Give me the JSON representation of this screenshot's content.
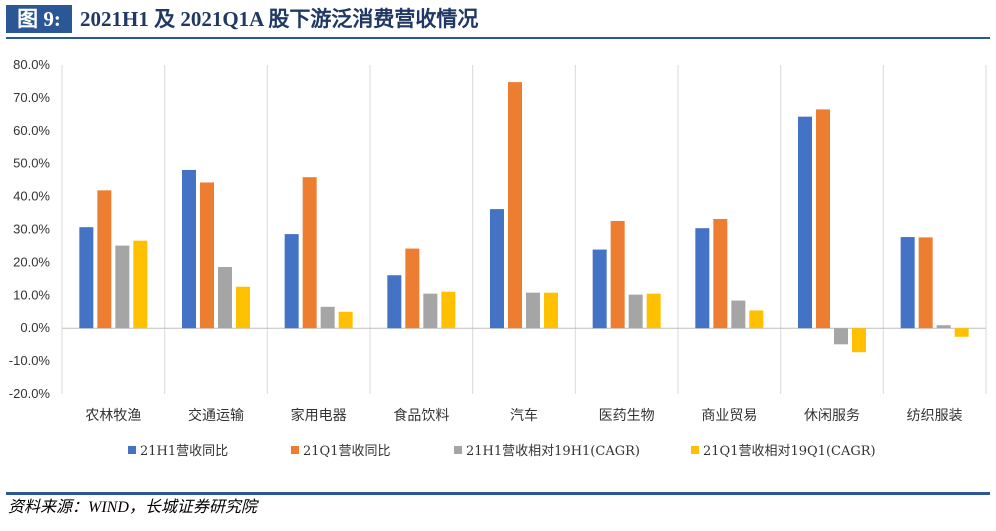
{
  "header": {
    "figure_label": "图 9:",
    "title": "2021H1 及 2021Q1A 股下游泛消费营收情况"
  },
  "footer": {
    "source": "资料来源：WIND，长城证券研究院"
  },
  "colors": {
    "brand": "#2b5797",
    "title_text": "#1f3864"
  },
  "chart_data": {
    "type": "bar",
    "categories": [
      "农林牧渔",
      "交通运输",
      "家用电器",
      "食品饮料",
      "汽车",
      "医药生物",
      "商业贸易",
      "休闲服务",
      "纺织服装"
    ],
    "series": [
      {
        "name": "21H1营收同比",
        "color": "#4472c4",
        "values": [
          30.7,
          48.1,
          28.6,
          16.1,
          36.2,
          23.9,
          30.4,
          64.3,
          27.7
        ]
      },
      {
        "name": "21Q1营收同比",
        "color": "#ed7d31",
        "values": [
          41.9,
          44.3,
          45.9,
          24.2,
          74.8,
          32.6,
          33.2,
          66.5,
          27.6
        ]
      },
      {
        "name": "21H1营收相对19H1(CAGR)",
        "color": "#a5a5a5",
        "values": [
          25.1,
          18.6,
          6.5,
          10.5,
          10.8,
          10.2,
          8.4,
          -4.9,
          0.9
        ]
      },
      {
        "name": "21Q1营收相对19Q1(CAGR)",
        "color": "#ffc000",
        "values": [
          26.6,
          12.6,
          5.0,
          11.1,
          10.8,
          10.5,
          5.4,
          -7.3,
          -2.6
        ]
      }
    ],
    "ylim": [
      -20,
      80
    ],
    "yticks": [
      -20,
      -10,
      0,
      10,
      20,
      30,
      40,
      50,
      60,
      70,
      80
    ],
    "ytick_labels": [
      "-20.0%",
      "-10.0%",
      "0.0%",
      "10.0%",
      "20.0%",
      "30.0%",
      "40.0%",
      "50.0%",
      "60.0%",
      "70.0%",
      "80.0%"
    ],
    "grid": "vertical-category-separators",
    "legend_position": "bottom"
  }
}
